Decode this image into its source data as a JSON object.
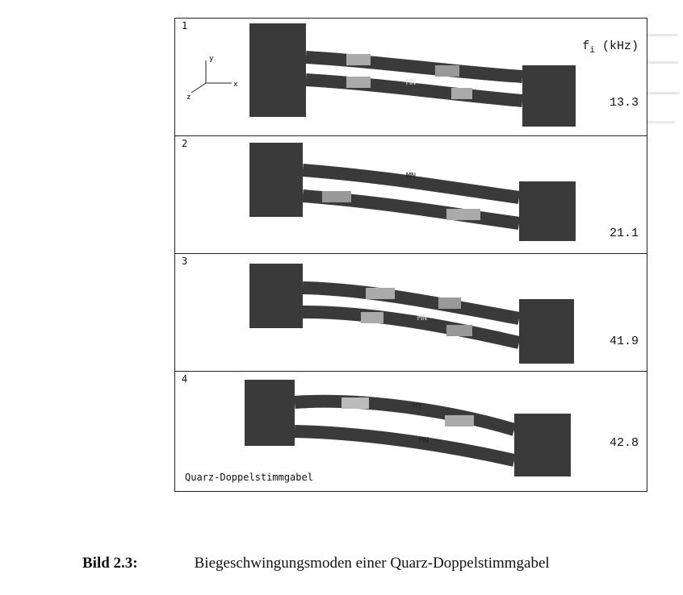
{
  "figure": {
    "freq_header_base": "f",
    "freq_header_sub": "i",
    "freq_header_unit": " (kHz)",
    "axis_labels": {
      "y": "y",
      "x": "x",
      "z": "z"
    },
    "panels": [
      {
        "number": "1",
        "frequency": "13.3",
        "label_a": "MN"
      },
      {
        "number": "2",
        "frequency": "21.1",
        "label_a": "MN"
      },
      {
        "number": "3",
        "frequency": "41.9",
        "label_a": "MN"
      },
      {
        "number": "4",
        "frequency": "42.8",
        "label_a": "MY",
        "label_b": "MN"
      }
    ],
    "caption_box": "Quarz-Doppelstimmgabel"
  },
  "caption": {
    "label": "Bild 2.3:",
    "text": "Biegeschwingungsmoden einer Quarz-Doppelstimmgabel"
  }
}
